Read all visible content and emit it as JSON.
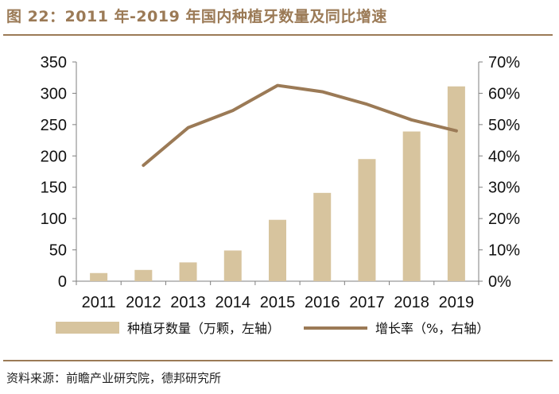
{
  "title": "图 22：2011 年-2019 年国内种植牙数量及同比增速",
  "source": "资料来源：前瞻产业研究院，德邦研究所",
  "colors": {
    "bar": "#d7c49e",
    "line": "#9b7a56",
    "axis": "#7f7f7f",
    "accent": "#9b7a56"
  },
  "chart_data": {
    "type": "bar+line",
    "title": "2011 年-2019 年国内种植牙数量及同比增速",
    "categories": [
      "2011",
      "2012",
      "2013",
      "2014",
      "2015",
      "2016",
      "2017",
      "2018",
      "2019"
    ],
    "series": [
      {
        "name": "种植牙数量（万颗，左轴）",
        "type": "bar",
        "axis": "left",
        "values": [
          13,
          18,
          30,
          49,
          98,
          141,
          195,
          239,
          311
        ]
      },
      {
        "name": "增长率（%，右轴）",
        "type": "line",
        "axis": "right",
        "values": [
          null,
          37,
          49,
          54.5,
          62.5,
          60.5,
          56.5,
          51.5,
          48
        ]
      }
    ],
    "y_left": {
      "lim": [
        0,
        350
      ],
      "ticks": [
        "0",
        "50",
        "100",
        "150",
        "200",
        "250",
        "300",
        "350"
      ]
    },
    "y_right": {
      "lim": [
        0,
        70
      ],
      "ticks": [
        "0%",
        "10%",
        "20%",
        "30%",
        "40%",
        "50%",
        "60%",
        "70%"
      ]
    },
    "grid": false,
    "legend_position": "bottom"
  }
}
